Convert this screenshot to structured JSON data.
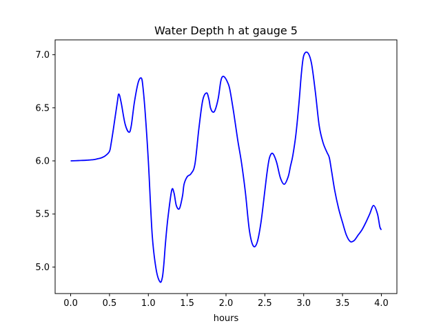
{
  "chart_data": {
    "type": "line",
    "title": "Water Depth h at gauge 5",
    "xlabel": "hours",
    "ylabel": "",
    "xlim": [
      -0.2,
      4.2
    ],
    "ylim": [
      4.75,
      7.14
    ],
    "xticks": [
      0.0,
      0.5,
      1.0,
      1.5,
      2.0,
      2.5,
      3.0,
      3.5,
      4.0
    ],
    "xtick_labels": [
      "0.0",
      "0.5",
      "1.0",
      "1.5",
      "2.0",
      "2.5",
      "3.0",
      "3.5",
      "4.0"
    ],
    "yticks": [
      5.0,
      5.5,
      6.0,
      6.5,
      7.0
    ],
    "ytick_labels": [
      "5.0",
      "5.5",
      "6.0",
      "6.5",
      "7.0"
    ],
    "grid": false,
    "legend": "none",
    "series": [
      {
        "color": "#0000ff",
        "x": [
          0.0,
          0.1,
          0.2,
          0.3,
          0.35,
          0.4,
          0.45,
          0.5,
          0.52,
          0.55,
          0.6,
          0.62,
          0.65,
          0.7,
          0.75,
          0.78,
          0.82,
          0.87,
          0.91,
          0.93,
          0.96,
          1.0,
          1.05,
          1.1,
          1.15,
          1.18,
          1.2,
          1.22,
          1.25,
          1.3,
          1.33,
          1.36,
          1.4,
          1.44,
          1.46,
          1.5,
          1.55,
          1.6,
          1.65,
          1.7,
          1.75,
          1.78,
          1.8,
          1.83,
          1.86,
          1.9,
          1.93,
          1.95,
          1.98,
          2.02,
          2.05,
          2.1,
          2.15,
          2.2,
          2.25,
          2.3,
          2.35,
          2.4,
          2.45,
          2.5,
          2.53,
          2.56,
          2.6,
          2.65,
          2.7,
          2.75,
          2.8,
          2.83,
          2.86,
          2.9,
          2.94,
          2.97,
          3.0,
          3.05,
          3.1,
          3.15,
          3.2,
          3.25,
          3.3,
          3.33,
          3.36,
          3.4,
          3.45,
          3.5,
          3.55,
          3.6,
          3.65,
          3.7,
          3.75,
          3.8,
          3.85,
          3.9,
          3.95,
          3.98,
          4.0
        ],
        "y": [
          6.0,
          6.003,
          6.006,
          6.012,
          6.02,
          6.03,
          6.05,
          6.09,
          6.16,
          6.3,
          6.55,
          6.63,
          6.55,
          6.35,
          6.27,
          6.33,
          6.55,
          6.74,
          6.78,
          6.7,
          6.45,
          6.0,
          5.3,
          4.98,
          4.86,
          4.9,
          5.03,
          5.22,
          5.45,
          5.72,
          5.7,
          5.58,
          5.55,
          5.67,
          5.78,
          5.85,
          5.88,
          5.97,
          6.3,
          6.57,
          6.64,
          6.58,
          6.5,
          6.46,
          6.48,
          6.59,
          6.74,
          6.79,
          6.79,
          6.74,
          6.67,
          6.45,
          6.2,
          5.98,
          5.7,
          5.35,
          5.2,
          5.23,
          5.42,
          5.72,
          5.9,
          6.03,
          6.07,
          5.99,
          5.84,
          5.78,
          5.85,
          5.95,
          6.05,
          6.25,
          6.55,
          6.82,
          6.99,
          7.02,
          6.92,
          6.65,
          6.33,
          6.17,
          6.08,
          6.03,
          5.9,
          5.72,
          5.55,
          5.42,
          5.3,
          5.24,
          5.25,
          5.3,
          5.35,
          5.42,
          5.5,
          5.58,
          5.5,
          5.38,
          5.35
        ]
      }
    ]
  }
}
